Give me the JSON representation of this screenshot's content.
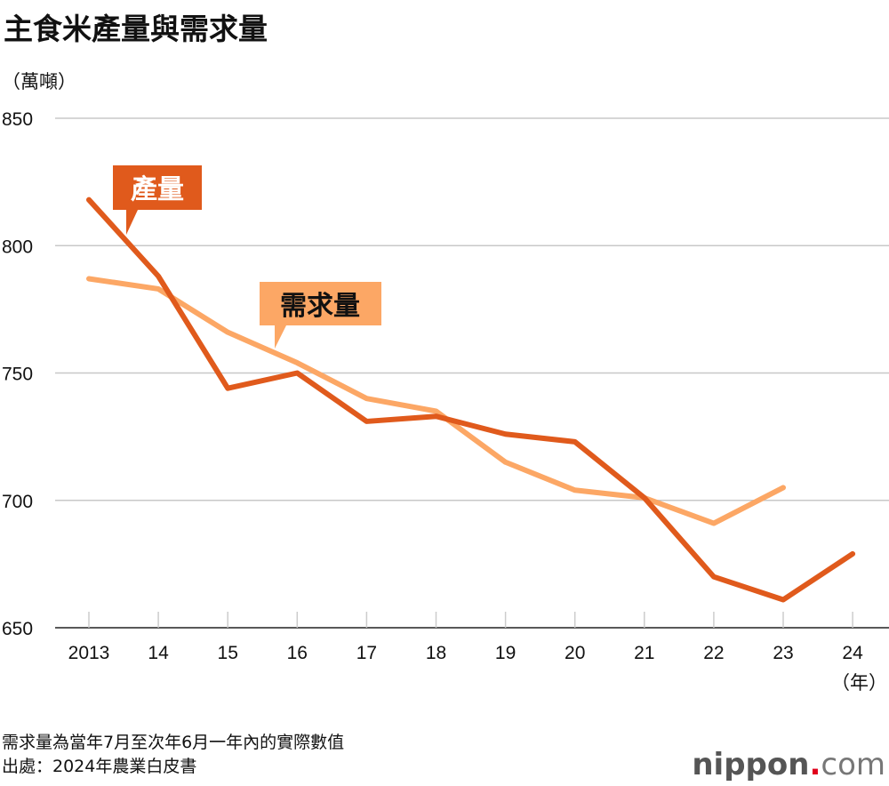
{
  "title": "主食米產量與需求量",
  "notes": [
    "需求量為當年7月至次年6月一年內的實際數值",
    "出處：2024年農業白皮書"
  ],
  "logo": {
    "name": "nippon",
    "dot": ".",
    "suffix": "com"
  },
  "chart_data": {
    "type": "line",
    "title": "主食米產量與需求量",
    "ylabel": "（萬噸）",
    "xlabel": "（年）",
    "ylim": [
      650,
      850
    ],
    "yticks": [
      650,
      700,
      750,
      800,
      850
    ],
    "grid": true,
    "x_tick_labels": [
      "2013",
      "14",
      "15",
      "16",
      "17",
      "18",
      "19",
      "20",
      "21",
      "22",
      "23",
      "24"
    ],
    "series": [
      {
        "name": "產量",
        "color": "#e05a1c",
        "values": [
          818,
          788,
          744,
          750,
          731,
          733,
          726,
          723,
          701,
          670,
          661,
          679
        ]
      },
      {
        "name": "需求量",
        "color": "#fca765",
        "values": [
          787,
          783,
          766,
          754,
          740,
          735,
          715,
          704,
          701,
          691,
          705,
          null
        ]
      }
    ]
  }
}
